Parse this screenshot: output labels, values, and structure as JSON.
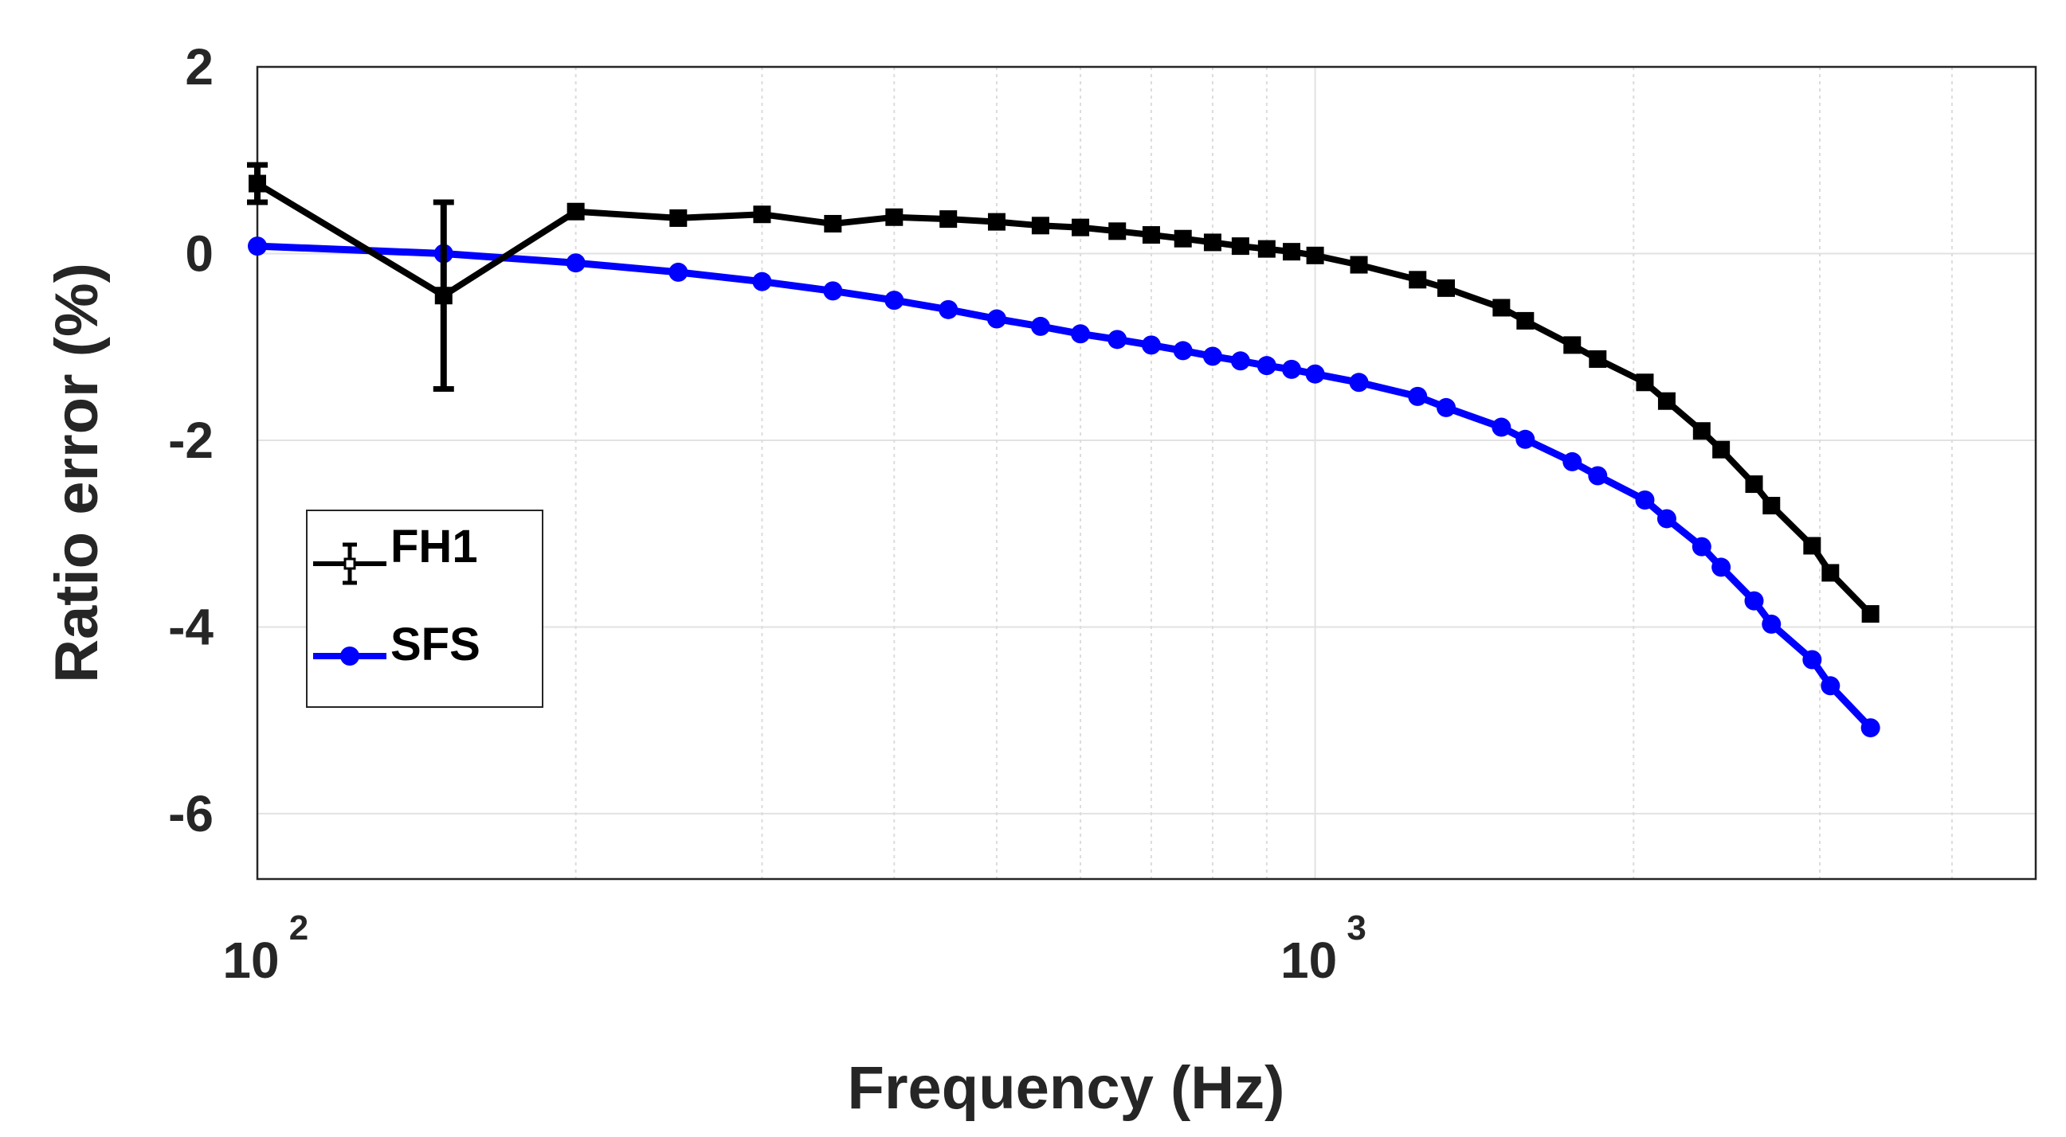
{
  "chart_data": {
    "type": "line",
    "title": "",
    "xlabel": "Frequency (Hz)",
    "ylabel": "Ratio error (%)",
    "xscale": "log",
    "xlim": [
      100,
      4800
    ],
    "ylim": [
      -6.7,
      2
    ],
    "yticks": [
      2,
      0,
      -2,
      -4,
      -6
    ],
    "ytick_labels": [
      "2",
      "0",
      "-2",
      "-4",
      "-6"
    ],
    "xticks": [
      {
        "value": 100,
        "base": "10",
        "exp": "2"
      },
      {
        "value": 1000,
        "base": "10",
        "exp": "3"
      }
    ],
    "grid": true,
    "legend_position": "left-middle",
    "colors": {
      "FH1": "#000000",
      "SFS": "#0000ff"
    },
    "series": [
      {
        "name": "FH1",
        "marker": "square",
        "x": [
          100,
          150,
          200,
          250,
          300,
          350,
          400,
          450,
          500,
          550,
          600,
          650,
          700,
          750,
          800,
          850,
          900,
          950,
          1000,
          1100,
          1250,
          1330,
          1500,
          1580,
          1750,
          1850,
          2050,
          2150,
          2320,
          2420,
          2600,
          2700,
          2950,
          3070,
          3350
        ],
        "y": [
          0.75,
          -0.45,
          0.45,
          0.38,
          0.42,
          0.32,
          0.39,
          0.37,
          0.34,
          0.3,
          0.28,
          0.24,
          0.2,
          0.16,
          0.12,
          0.08,
          0.05,
          0.02,
          -0.02,
          -0.12,
          -0.28,
          -0.37,
          -0.58,
          -0.72,
          -0.98,
          -1.13,
          -1.38,
          -1.58,
          -1.9,
          -2.1,
          -2.47,
          -2.7,
          -3.13,
          -3.42,
          -3.86
        ],
        "error_bars": [
          {
            "x": 100,
            "lower": 0.55,
            "upper": 0.95
          },
          {
            "x": 150,
            "lower": -1.45,
            "upper": 0.55
          }
        ]
      },
      {
        "name": "SFS",
        "marker": "circle",
        "x": [
          100,
          150,
          200,
          250,
          300,
          350,
          400,
          450,
          500,
          550,
          600,
          650,
          700,
          750,
          800,
          850,
          900,
          950,
          1000,
          1100,
          1250,
          1330,
          1500,
          1580,
          1750,
          1850,
          2050,
          2150,
          2320,
          2420,
          2600,
          2700,
          2950,
          3070,
          3350
        ],
        "y": [
          0.08,
          0.0,
          -0.1,
          -0.2,
          -0.3,
          -0.4,
          -0.5,
          -0.6,
          -0.7,
          -0.78,
          -0.86,
          -0.92,
          -0.98,
          -1.04,
          -1.1,
          -1.15,
          -1.2,
          -1.24,
          -1.29,
          -1.38,
          -1.53,
          -1.65,
          -1.86,
          -1.99,
          -2.23,
          -2.38,
          -2.64,
          -2.84,
          -3.14,
          -3.36,
          -3.72,
          -3.97,
          -4.35,
          -4.63,
          -5.08
        ]
      }
    ]
  }
}
